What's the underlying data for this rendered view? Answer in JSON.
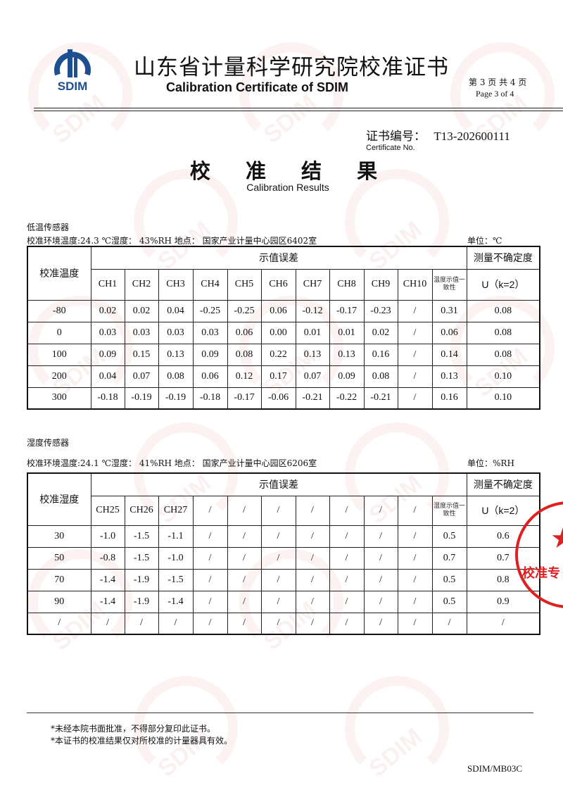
{
  "header": {
    "logo_text": "SDIM",
    "title_cn": "山东省计量科学研究院校准证书",
    "title_en": "Calibration Certificate of SDIM",
    "page_cn": "第 3 页 共 4 页",
    "page_en": "Page 3 of  4"
  },
  "certificate": {
    "label_cn": "证书编号：",
    "number": "T13-202600111",
    "label_en": "Certificate No."
  },
  "section_title": {
    "cn": "校 准 结 果",
    "en": "Calibration Results"
  },
  "table1": {
    "caption": "低温传感器",
    "env": "校准环境温度:24.3 ℃湿度：  43%RH   地点：  国家产业计量中心园区6402室",
    "unit": "单位：℃",
    "col0": "校准温度",
    "group": "示值误差",
    "uncert": "测量不确定度",
    "channels": [
      "CH1",
      "CH2",
      "CH3",
      "CH4",
      "CH5",
      "CH6",
      "CH7",
      "CH8",
      "CH9",
      "CH10"
    ],
    "consistency": "温度示值一致性",
    "u_label": "U（k=2）",
    "rows": [
      [
        "-80",
        "0.02",
        "0.02",
        "0.04",
        "-0.25",
        "-0.25",
        "0.06",
        "-0.12",
        "-0.17",
        "-0.23",
        "/",
        "0.31",
        "0.08"
      ],
      [
        "0",
        "0.03",
        "0.03",
        "0.03",
        "0.03",
        "0.06",
        "0.00",
        "0.01",
        "0.01",
        "0.02",
        "/",
        "0.06",
        "0.08"
      ],
      [
        "100",
        "0.09",
        "0.15",
        "0.13",
        "0.09",
        "0.08",
        "0.22",
        "0.13",
        "0.13",
        "0.16",
        "/",
        "0.14",
        "0.08"
      ],
      [
        "200",
        "0.04",
        "0.07",
        "0.08",
        "0.06",
        "0.12",
        "0.17",
        "0.07",
        "0.09",
        "0.08",
        "/",
        "0.13",
        "0.10"
      ],
      [
        "300",
        "-0.18",
        "-0.19",
        "-0.19",
        "-0.18",
        "-0.17",
        "-0.06",
        "-0.21",
        "-0.22",
        "-0.21",
        "/",
        "0.16",
        "0.10"
      ]
    ]
  },
  "table2": {
    "caption": "湿度传感器",
    "env": "校准环境温度:24.1 ℃湿度：  41%RH   地点：  国家产业计量中心园区6206室",
    "unit": "单位：%RH",
    "col0": "校准湿度",
    "group": "示值误差",
    "uncert": "测量不确定度",
    "channels": [
      "CH25",
      "CH26",
      "CH27",
      "/",
      "/",
      "/",
      "/",
      "/",
      "/",
      "/"
    ],
    "consistency": "湿度示值一致性",
    "u_label": "U（k=2）",
    "rows": [
      [
        "30",
        "-1.0",
        "-1.5",
        "-1.1",
        "/",
        "/",
        "/",
        "/",
        "/",
        "/",
        "/",
        "0.5",
        "0.6"
      ],
      [
        "50",
        "-0.8",
        "-1.5",
        "-1.0",
        "/",
        "/",
        "/",
        "/",
        "/",
        "/",
        "/",
        "0.7",
        "0.7"
      ],
      [
        "70",
        "-1.4",
        "-1.9",
        "-1.5",
        "/",
        "/",
        "/",
        "/",
        "/",
        "/",
        "/",
        "0.5",
        "0.8"
      ],
      [
        "90",
        "-1.4",
        "-1.9",
        "-1.4",
        "/",
        "/",
        "/",
        "/",
        "/",
        "/",
        "/",
        "0.5",
        "0.9"
      ],
      [
        "/",
        "/",
        "/",
        "/",
        "/",
        "/",
        "/",
        "/",
        "/",
        "/",
        "/",
        "/",
        "/"
      ]
    ]
  },
  "notes": [
    "*未经本院书面批准，不得部分复印此证书。",
    "*本证书的校准结果仅对所校准的计量器具有效。"
  ],
  "form_code": "SDIM/MB03C",
  "stamp": {
    "text": "山东省计量科学研究院 校准专用章",
    "color": "#e02020"
  },
  "colors": {
    "logo_blue": "#1d4f91",
    "watermark": "#c82828"
  }
}
